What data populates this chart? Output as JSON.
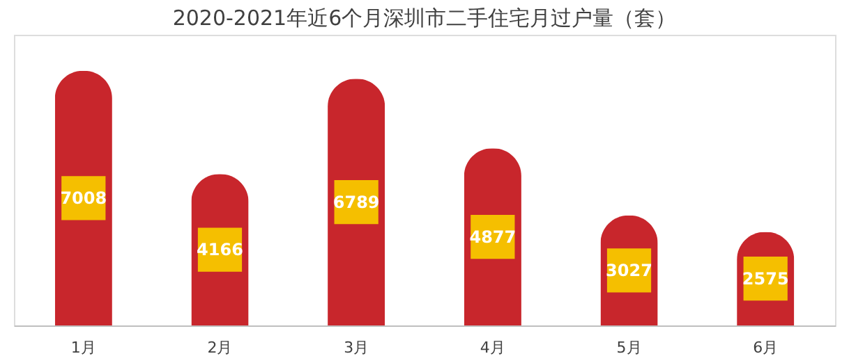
{
  "chart_data": {
    "type": "bar",
    "title": "2020-2021年近6个月深圳市二手住宅月过户量（套）",
    "categories": [
      "1月",
      "2月",
      "3月",
      "4月",
      "5月",
      "6月"
    ],
    "values": [
      7008,
      4166,
      6789,
      4877,
      3027,
      2575
    ],
    "color": "#c8262c",
    "ylim": [
      0,
      8000
    ],
    "data_labels": true
  }
}
